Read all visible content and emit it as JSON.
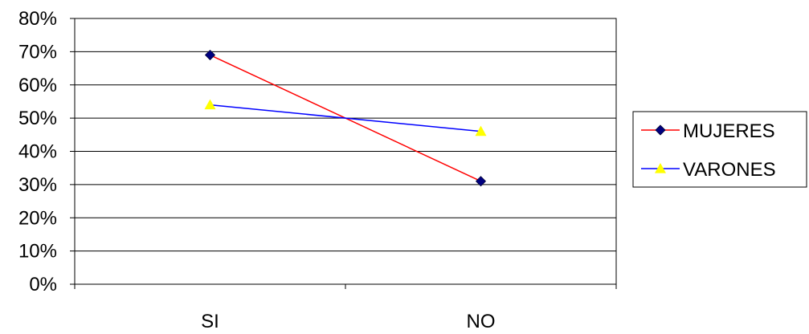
{
  "chart_data": {
    "type": "line",
    "categories": [
      "SI",
      "NO"
    ],
    "series": [
      {
        "name": "MUJERES",
        "values": [
          69,
          31
        ],
        "line_color": "#ff0000",
        "marker_color": "#000080",
        "marker": "diamond"
      },
      {
        "name": "VARONES",
        "values": [
          54,
          46
        ],
        "line_color": "#0000ff",
        "marker_color": "#ffff00",
        "marker": "triangle"
      }
    ],
    "ylim": [
      0,
      80
    ],
    "yticks": [
      "0%",
      "10%",
      "20%",
      "30%",
      "40%",
      "50%",
      "60%",
      "70%",
      "80%"
    ],
    "grid": true,
    "legend": "right"
  }
}
